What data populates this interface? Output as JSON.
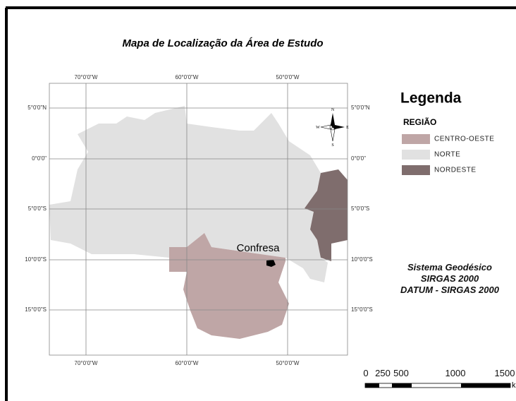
{
  "title": "Mapa de Localização da Área de Estudo",
  "graticule": {
    "longitudes": [
      "70°0'0\"W",
      "60°0'0\"W",
      "50°0'0\"W"
    ],
    "latitudes": [
      "5°0'0\"N",
      "0°0'0\"",
      "5°0'0\"S",
      "10°0'0\"S",
      "15°0'0\"S"
    ]
  },
  "compass": {
    "n": "N",
    "s": "S",
    "e": "E",
    "w": "W"
  },
  "place_label": "Confresa",
  "legend": {
    "title": "Legenda",
    "heading": "REGIÃO",
    "items": [
      {
        "label": "CENTRO-OESTE",
        "color": "#bfa6a6"
      },
      {
        "label": "NORTE",
        "color": "#e1e1e1"
      },
      {
        "label": "NORDESTE",
        "color": "#7f6d6d"
      }
    ]
  },
  "datum": [
    "Sistema Geodésico",
    "SIRGAS 2000",
    "DATUM  - SIRGAS 2000"
  ],
  "scale_bar": {
    "labels": [
      "0",
      "250",
      "500",
      "1000",
      "1500"
    ],
    "unit": "km"
  }
}
